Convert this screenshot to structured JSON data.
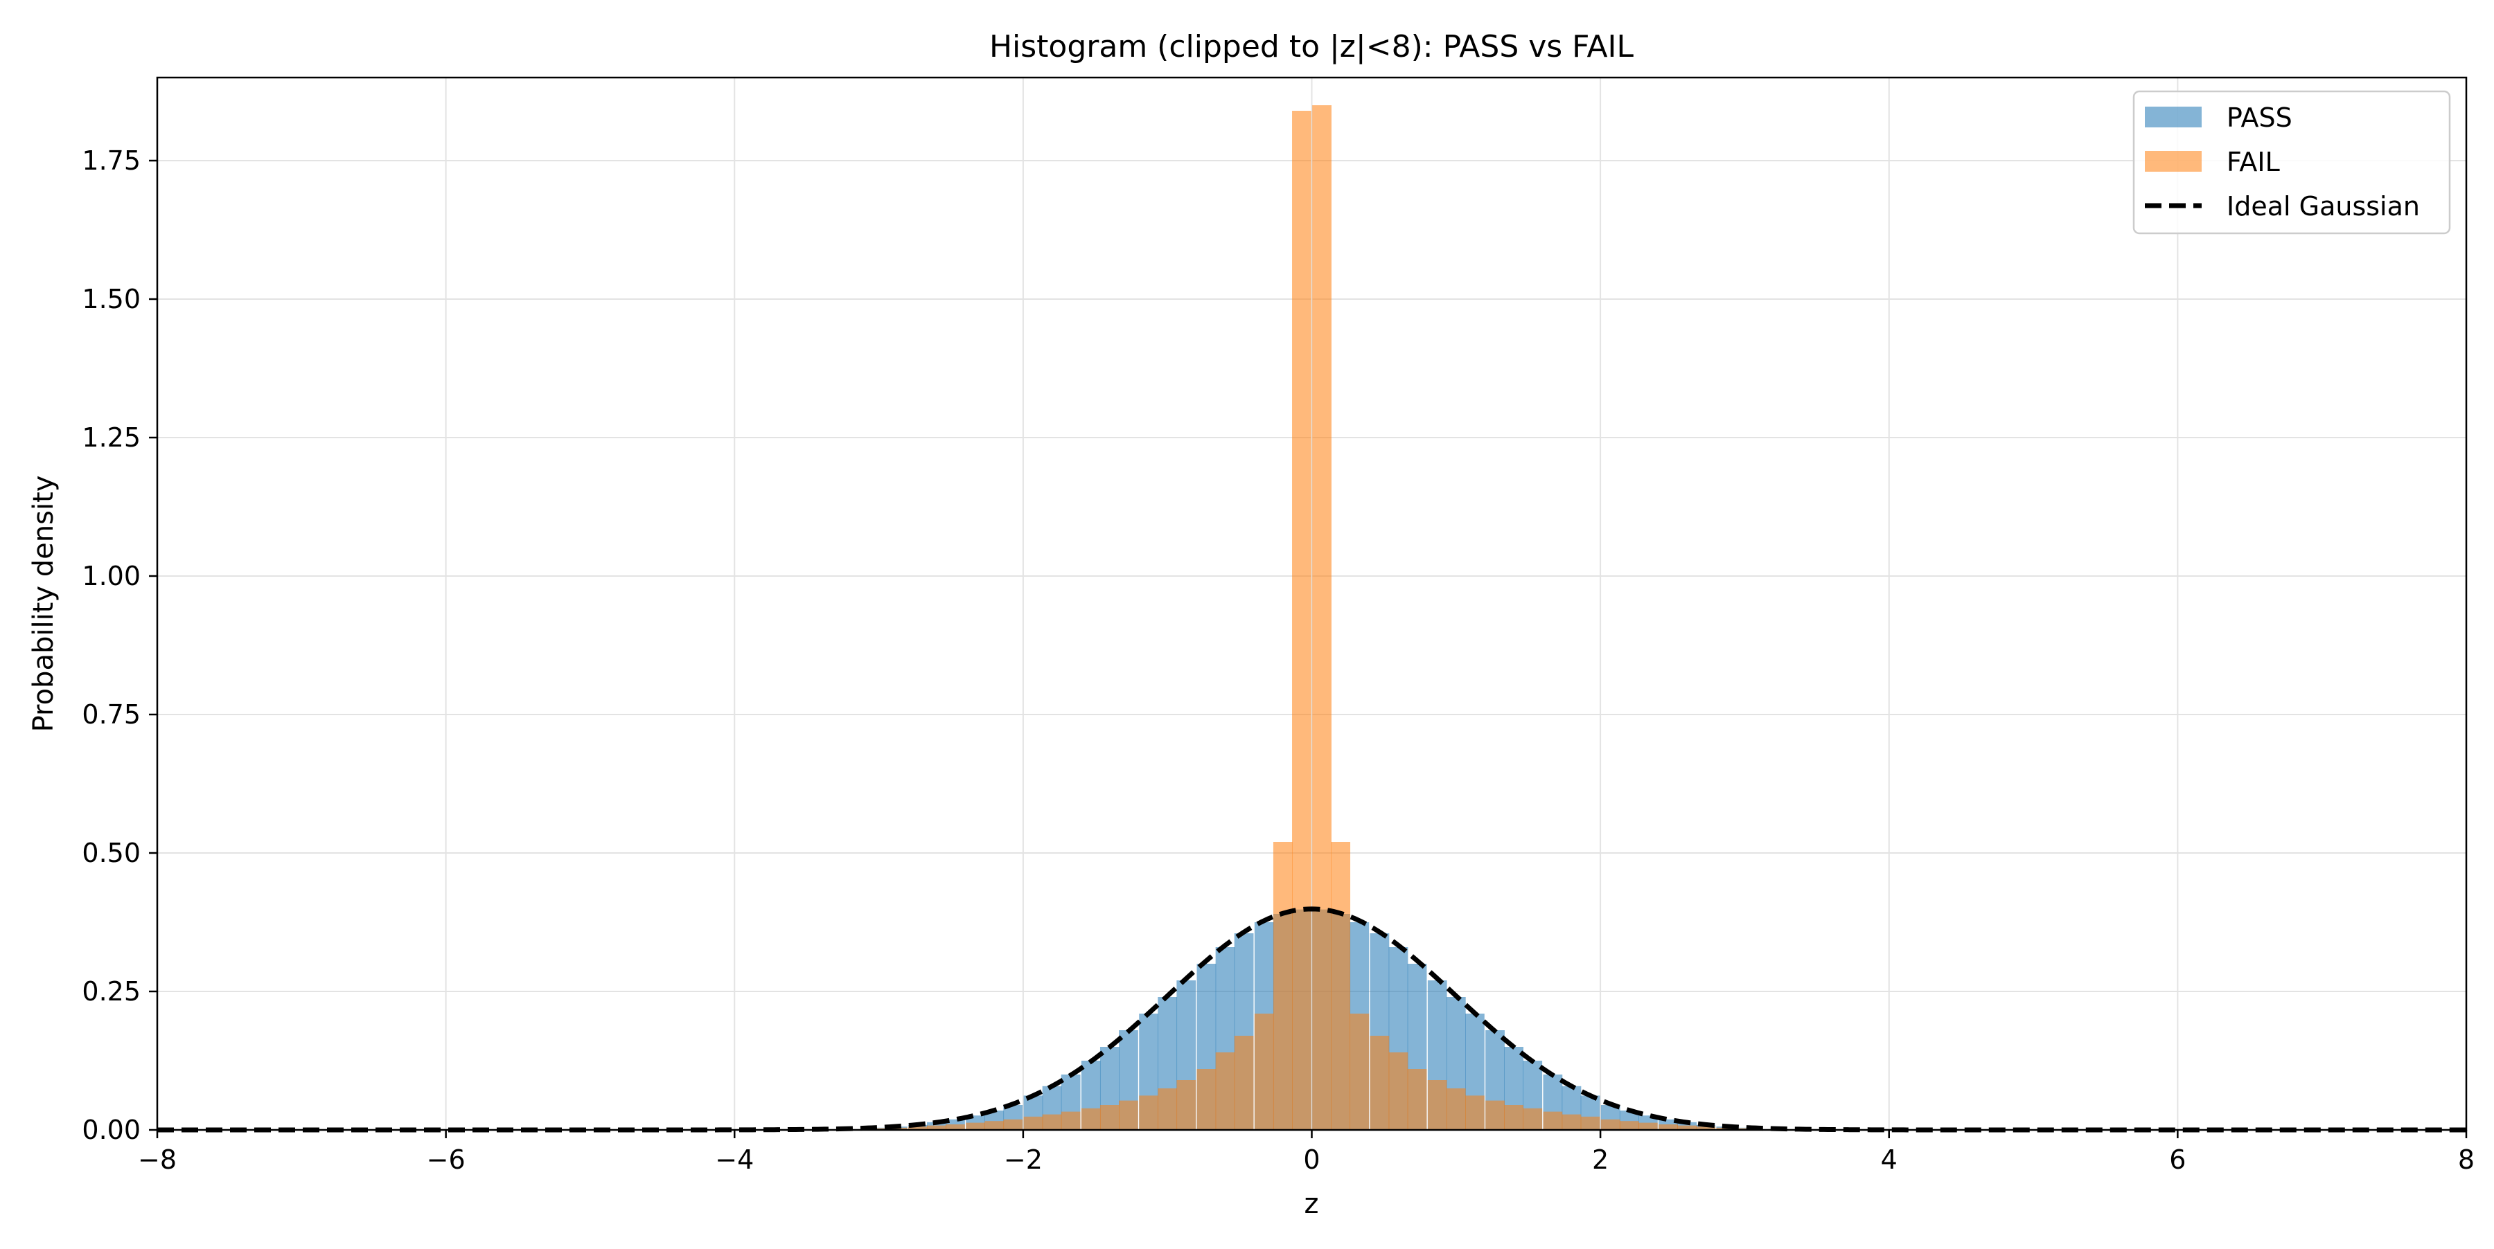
{
  "chart_data": {
    "type": "bar",
    "title": "Histogram (clipped to |z|<8): PASS vs FAIL",
    "xlabel": "z",
    "ylabel": "Probability density",
    "xlim": [
      -8,
      8
    ],
    "ylim": [
      0,
      1.9
    ],
    "x_ticks": [
      -8,
      -6,
      -4,
      -2,
      0,
      2,
      4,
      6,
      8
    ],
    "x_tick_labels": [
      "−8",
      "−6",
      "−4",
      "−2",
      "0",
      "2",
      "4",
      "6",
      "8"
    ],
    "y_ticks": [
      0,
      0.25,
      0.5,
      0.75,
      1.0,
      1.25,
      1.5,
      1.75
    ],
    "y_tick_labels": [
      "0.00",
      "0.25",
      "0.50",
      "0.75",
      "1.00",
      "1.25",
      "1.50",
      "1.75"
    ],
    "grid": true,
    "legend_position": "top-right",
    "bin_width": 0.1333,
    "series": [
      {
        "name": "PASS",
        "kind": "histogram",
        "color": "#1f77b4",
        "opacity": 0.55,
        "bin_centers": [
          -3.0,
          -2.87,
          -2.73,
          -2.6,
          -2.47,
          -2.33,
          -2.2,
          -2.07,
          -1.93,
          -1.8,
          -1.67,
          -1.53,
          -1.4,
          -1.27,
          -1.13,
          -1.0,
          -0.87,
          -0.73,
          -0.6,
          -0.47,
          -0.33,
          -0.2,
          -0.07,
          0.07,
          0.2,
          0.33,
          0.47,
          0.6,
          0.73,
          0.87,
          1.0,
          1.13,
          1.27,
          1.4,
          1.53,
          1.67,
          1.8,
          1.93,
          2.07,
          2.2,
          2.33,
          2.47,
          2.6,
          2.73,
          2.87,
          3.0
        ],
        "values": [
          0.004,
          0.006,
          0.009,
          0.014,
          0.019,
          0.026,
          0.035,
          0.045,
          0.062,
          0.079,
          0.1,
          0.125,
          0.15,
          0.18,
          0.21,
          0.24,
          0.27,
          0.3,
          0.33,
          0.355,
          0.375,
          0.39,
          0.398,
          0.398,
          0.39,
          0.375,
          0.355,
          0.33,
          0.3,
          0.27,
          0.24,
          0.21,
          0.18,
          0.15,
          0.125,
          0.1,
          0.079,
          0.062,
          0.045,
          0.035,
          0.026,
          0.019,
          0.014,
          0.009,
          0.006,
          0.004
        ]
      },
      {
        "name": "FAIL",
        "kind": "histogram",
        "color": "#ff7f0e",
        "opacity": 0.55,
        "bin_centers": [
          -3.0,
          -2.87,
          -2.73,
          -2.6,
          -2.47,
          -2.33,
          -2.2,
          -2.07,
          -1.93,
          -1.8,
          -1.67,
          -1.53,
          -1.4,
          -1.27,
          -1.13,
          -1.0,
          -0.87,
          -0.73,
          -0.6,
          -0.47,
          -0.33,
          -0.2,
          -0.07,
          0.07,
          0.2,
          0.33,
          0.47,
          0.6,
          0.73,
          0.87,
          1.0,
          1.13,
          1.27,
          1.4,
          1.53,
          1.67,
          1.8,
          1.93,
          2.07,
          2.2,
          2.33,
          2.47,
          2.6,
          2.73,
          2.87,
          3.0
        ],
        "values": [
          0.003,
          0.004,
          0.006,
          0.008,
          0.01,
          0.013,
          0.016,
          0.019,
          0.024,
          0.028,
          0.033,
          0.039,
          0.045,
          0.053,
          0.062,
          0.075,
          0.09,
          0.11,
          0.14,
          0.17,
          0.21,
          0.52,
          1.84,
          1.85,
          0.52,
          0.21,
          0.17,
          0.14,
          0.11,
          0.09,
          0.075,
          0.062,
          0.053,
          0.045,
          0.039,
          0.033,
          0.028,
          0.024,
          0.019,
          0.016,
          0.013,
          0.01,
          0.008,
          0.006,
          0.004,
          0.003
        ]
      },
      {
        "name": "Ideal Gaussian",
        "kind": "line",
        "color": "#000000",
        "linestyle": "dashed",
        "mean": 0,
        "std": 1
      }
    ]
  }
}
